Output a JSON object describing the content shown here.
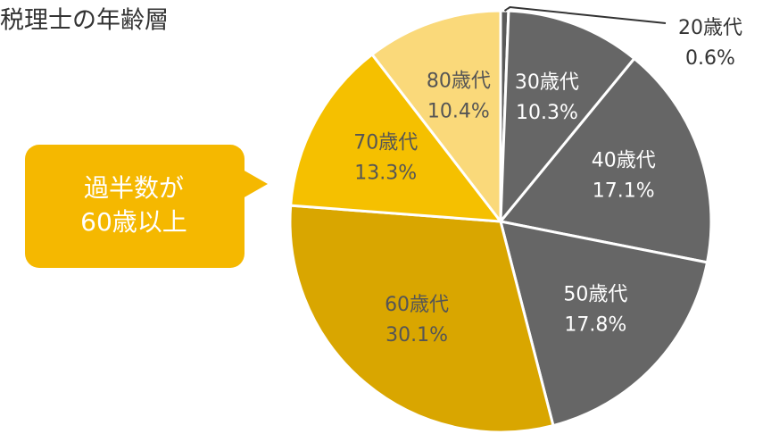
{
  "chart_data": {
    "type": "pie",
    "title": "税理士の年齢層",
    "categories": [
      "20歳代",
      "30歳代",
      "40歳代",
      "50歳代",
      "60歳代",
      "70歳代",
      "80歳代"
    ],
    "values": [
      0.6,
      10.3,
      17.1,
      17.8,
      30.1,
      13.3,
      10.4
    ],
    "value_labels": [
      "0.6%",
      "10.3%",
      "17.1%",
      "17.8%",
      "30.1%",
      "13.3%",
      "10.4%"
    ],
    "colors": [
      "#5a5a5a",
      "#666666",
      "#666666",
      "#666666",
      "#d9a600",
      "#f5c000",
      "#fad97a"
    ],
    "annotation": [
      "過半数が",
      "60歳以上"
    ]
  }
}
